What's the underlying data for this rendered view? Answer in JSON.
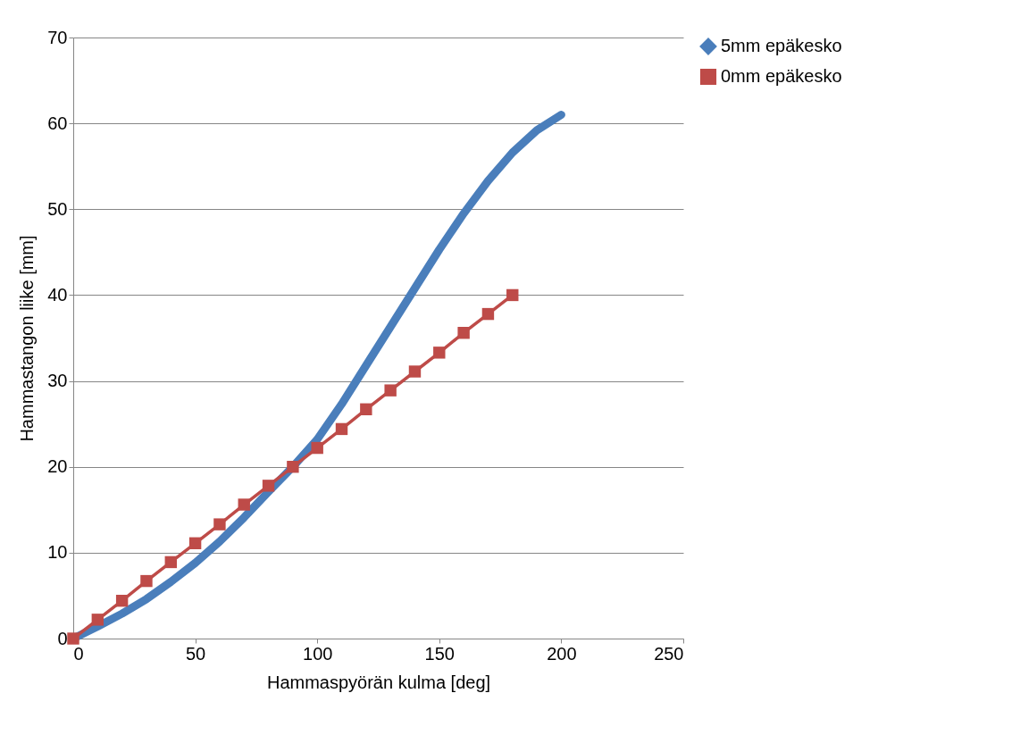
{
  "chart_data": {
    "type": "line",
    "xlabel": "Hammaspyörän kulma [deg]",
    "ylabel": "Hammastangon liike [mm]",
    "x": [
      0,
      10,
      20,
      30,
      40,
      50,
      60,
      70,
      80,
      90,
      100,
      110,
      120,
      130,
      140,
      150,
      160,
      170,
      180,
      190,
      200
    ],
    "series": [
      {
        "name": "5mm epäkesko",
        "color": "#4a7ebb",
        "marker": "diamond",
        "values": [
          0,
          1.4,
          2.9,
          4.6,
          6.6,
          8.8,
          11.3,
          14.1,
          17.1,
          20.0,
          23.2,
          27.3,
          31.8,
          36.3,
          40.8,
          45.3,
          49.5,
          53.3,
          56.6,
          59.2,
          61.0
        ]
      },
      {
        "name": "0mm epäkesko",
        "color": "#be4b48",
        "marker": "square",
        "x": [
          0,
          10,
          20,
          30,
          40,
          50,
          60,
          70,
          80,
          90,
          100,
          110,
          120,
          130,
          140,
          150,
          160,
          170,
          180
        ],
        "values": [
          0,
          2.2,
          4.4,
          6.7,
          8.9,
          11.1,
          13.3,
          15.6,
          17.8,
          20.0,
          22.2,
          24.4,
          26.7,
          28.9,
          31.1,
          33.3,
          35.6,
          37.8,
          40.0
        ]
      }
    ],
    "xlim": [
      0,
      250
    ],
    "xticks": [
      0,
      50,
      100,
      150,
      200,
      250
    ],
    "ylim": [
      0,
      70
    ],
    "yticks": [
      0,
      10,
      20,
      30,
      40,
      50,
      60,
      70
    ],
    "grid": "y",
    "legend": "right"
  }
}
